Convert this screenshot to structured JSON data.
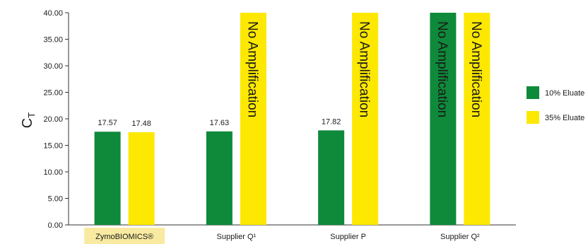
{
  "chart_data": {
    "type": "bar",
    "categories": [
      "ZymoBIOMICS®",
      "Supplier Q¹",
      "Supplier P",
      "Supplier Q²"
    ],
    "highlight_category": "ZymoBIOMICS®",
    "highlight_color": "#f8eaa0",
    "ylabel": "C",
    "ylabel_subscript": "T",
    "ylim": [
      0,
      40
    ],
    "yticks": [
      0,
      5,
      10,
      15,
      20,
      25,
      30,
      35,
      40
    ],
    "ytick_labels": [
      "0.00",
      "5.00",
      "10.00",
      "15.00",
      "20.00",
      "25.00",
      "30.00",
      "35.00",
      "40.00"
    ],
    "grid": false,
    "legend_position": "right",
    "series": [
      {
        "name": "10% Eluate",
        "color": "#0e8a3a",
        "values": [
          17.57,
          17.63,
          17.82,
          40
        ],
        "labels": [
          "17.57",
          "17.63",
          "17.82",
          "No Amplification"
        ],
        "label_style": [
          "above",
          "above",
          "above",
          "rotated"
        ]
      },
      {
        "name": "35% Eluate",
        "color": "#fce800",
        "values": [
          17.48,
          40,
          40,
          40
        ],
        "labels": [
          "17.48",
          "No Amplification",
          "No Amplification",
          "No Amplification"
        ],
        "label_style": [
          "above",
          "rotated",
          "rotated",
          "rotated"
        ]
      }
    ]
  }
}
